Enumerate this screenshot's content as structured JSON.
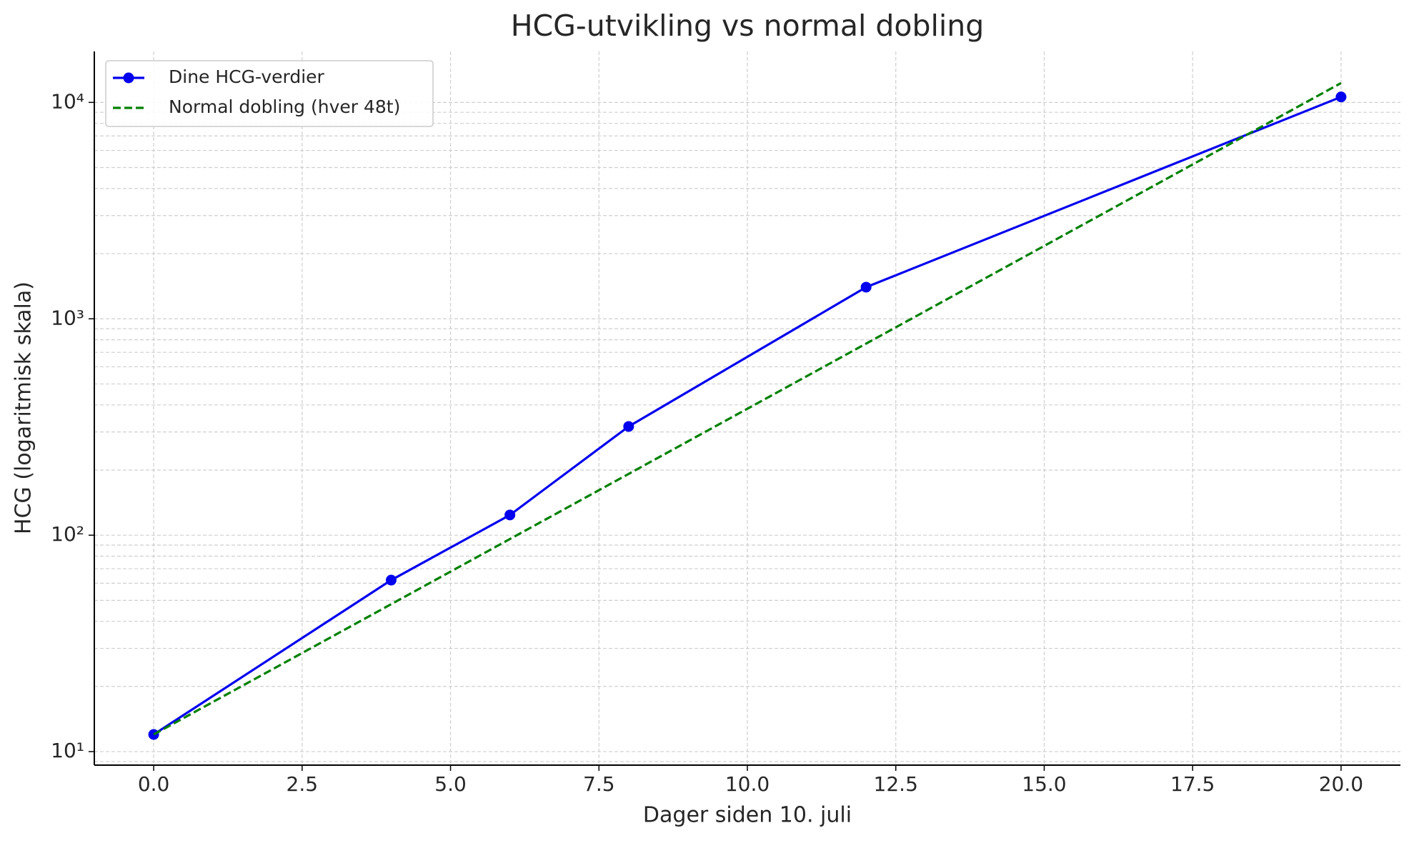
{
  "chart_data": {
    "type": "line",
    "title": "HCG-utvikling vs normal dobling",
    "x_label": "Dager siden 10. juli",
    "y_label": "HCG (logaritmisk skala)",
    "series": [
      {
        "name": "Dine HCG-verdier",
        "color": "#0000ee",
        "style": "solid",
        "markers": true,
        "x": [
          0,
          4,
          6,
          8,
          12,
          20
        ],
        "values": [
          12,
          62,
          124,
          318,
          1400,
          10600
        ]
      },
      {
        "name": "Normal dobling (hver 48t)",
        "color": "#008000",
        "style": "dashed",
        "markers": false,
        "x": [
          0,
          2,
          4,
          6,
          8,
          10,
          12,
          14,
          16,
          18,
          20
        ],
        "values": [
          12,
          24,
          48,
          96,
          192,
          384,
          768,
          1536,
          3072,
          6144,
          12288
        ]
      }
    ],
    "xlim": [
      -1,
      21
    ],
    "ylim": [
      8.66,
      17200
    ],
    "y_log_scale": true,
    "xticks": [
      {
        "value": 0,
        "label": "0.0"
      },
      2.5,
      {
        "value": 5,
        "label": "5.0"
      },
      7.5,
      {
        "value": 10,
        "label": "10.0"
      },
      12.5,
      {
        "value": 15,
        "label": "15.0"
      },
      17.5,
      {
        "value": 20,
        "label": "20.0"
      }
    ],
    "yticks": [
      {
        "value": 10,
        "label": "10¹"
      },
      {
        "value": 100,
        "label": "10²"
      },
      {
        "value": 1000,
        "label": "10³"
      },
      {
        "value": 10000,
        "label": "10⁴"
      }
    ],
    "y_minor_ticks": [
      9,
      20,
      30,
      40,
      50,
      60,
      70,
      80,
      90,
      200,
      300,
      400,
      500,
      600,
      700,
      800,
      900,
      2000,
      3000,
      4000,
      5000,
      6000,
      7000,
      8000,
      9000
    ],
    "grid": true,
    "legend": "upper left"
  }
}
